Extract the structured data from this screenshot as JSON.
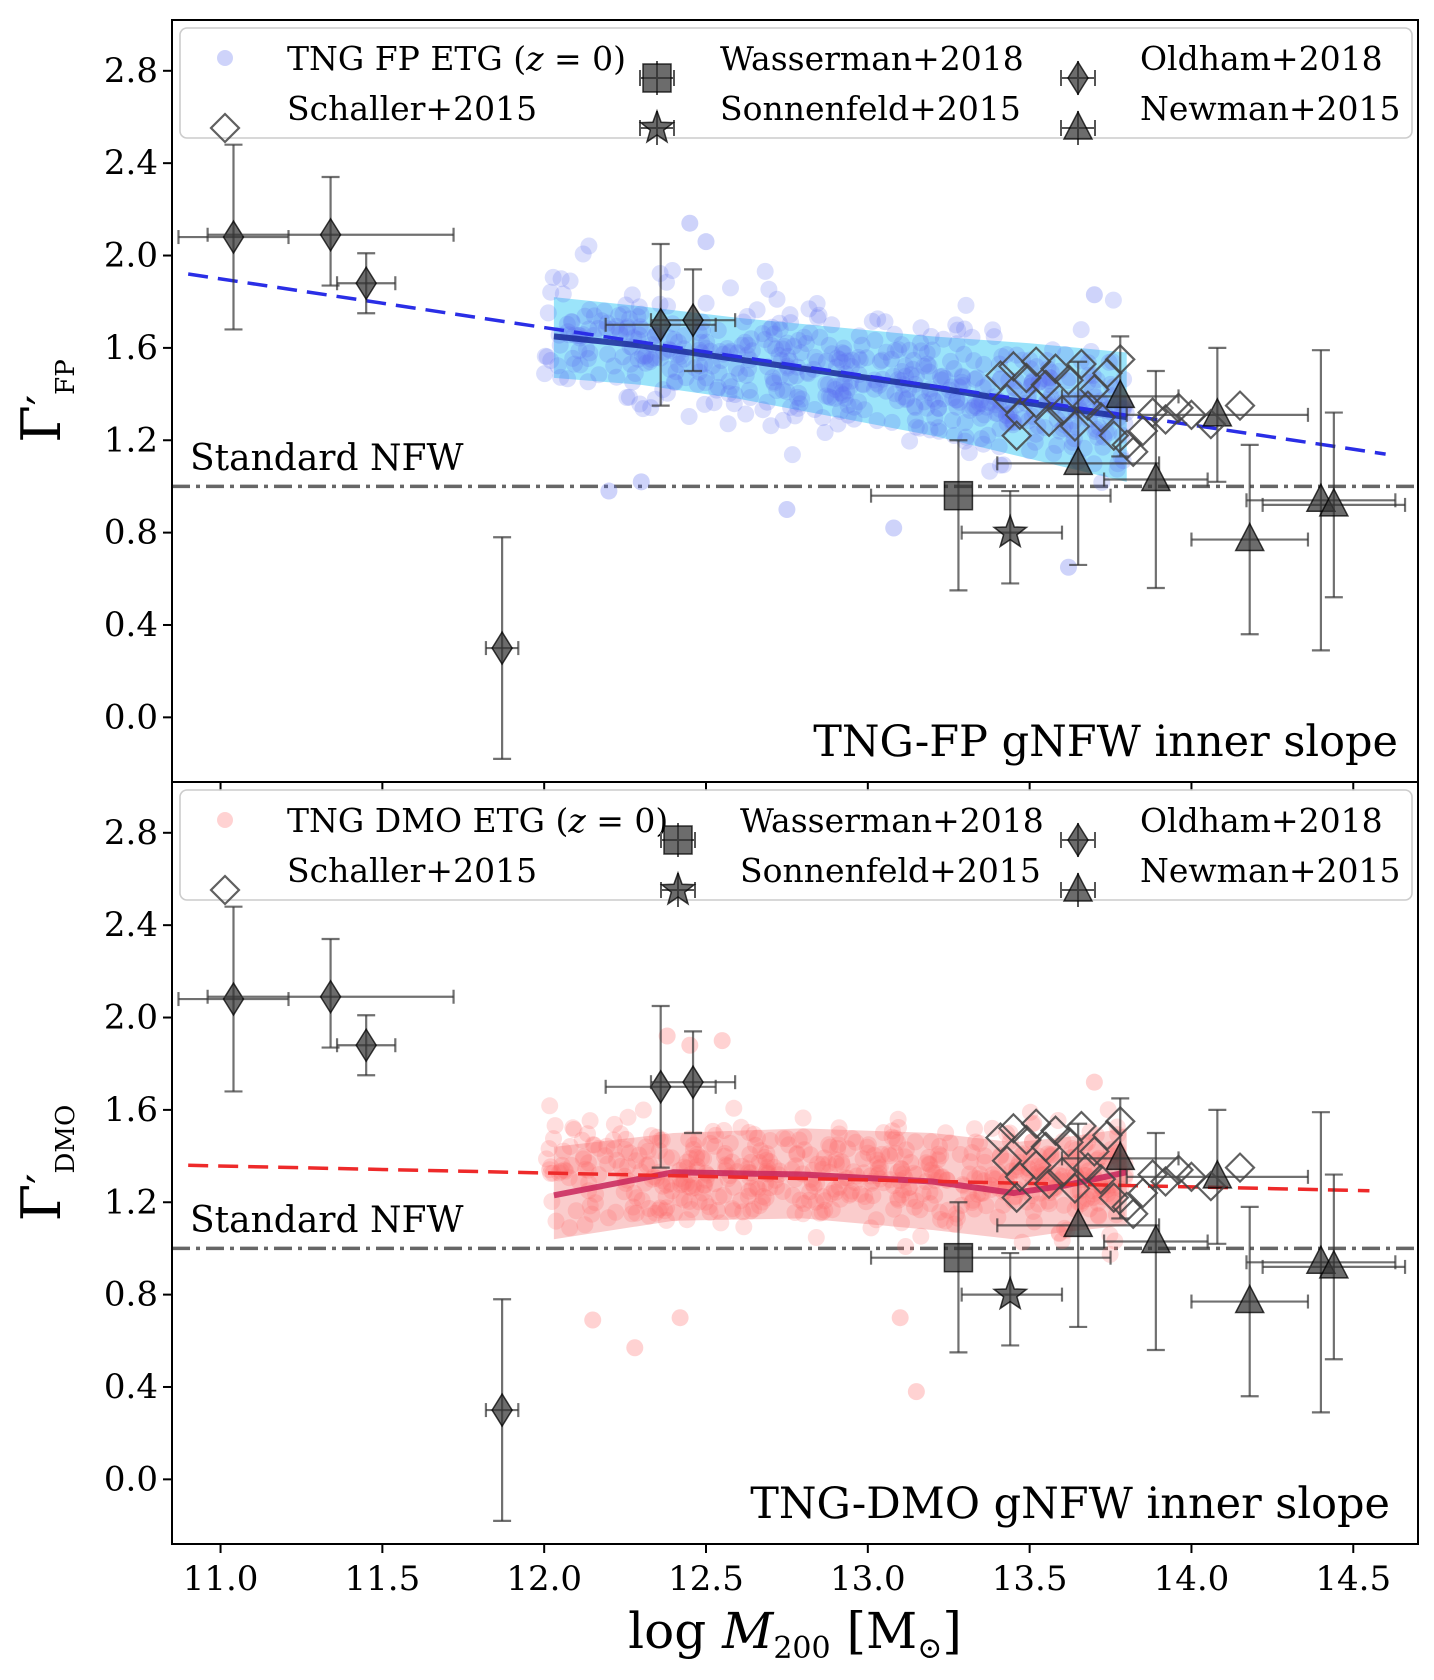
{
  "figure": {
    "shared_xlabel": "log M200 [M⊙]",
    "x_ticks": [
      "11.0",
      "11.5",
      "12.0",
      "12.5",
      "13.0",
      "13.5",
      "14.0",
      "14.5"
    ],
    "y_ticks": [
      "2.8",
      "2.4",
      "2.0",
      "1.6",
      "1.2",
      "0.8",
      "0.4",
      "0.0"
    ],
    "ref_label": "Standard NFW"
  },
  "chart_data": [
    {
      "type": "scatter",
      "id": "fp",
      "title": "TNG-FP gNFW inner slope",
      "ylabel": "Γ'FP",
      "ylabel_sub": "FP",
      "xlim": [
        10.85,
        14.7
      ],
      "ylim": [
        -0.28,
        3.02
      ],
      "colors": {
        "points": "#5c6cf0",
        "band": "#49cdf6",
        "median": "#1a2a9a",
        "fit": "#2a2ee6"
      },
      "legend": {
        "sim_label": "TNG FP ETG (z=0)",
        "sim_prefix": "TNG FP ETG (",
        "sim_z": "z",
        "sim_suffix": " = 0)",
        "items": [
          "Wasserman+2018",
          "Oldham+2018",
          "Schaller+2015",
          "Sonnenfeld+2015",
          "Newman+2015"
        ]
      },
      "reference_line": {
        "y": 1.0,
        "label": "Standard NFW"
      },
      "fit_line": {
        "x": [
          10.9,
          14.6
        ],
        "y": [
          1.92,
          1.14
        ]
      },
      "median_line": {
        "x": [
          12.03,
          12.3,
          12.6,
          12.9,
          13.2,
          13.5,
          13.8
        ],
        "y": [
          1.65,
          1.61,
          1.55,
          1.49,
          1.43,
          1.36,
          1.3
        ]
      },
      "band": {
        "x": [
          12.03,
          12.3,
          12.6,
          12.9,
          13.2,
          13.5,
          13.8
        ],
        "upper": [
          1.82,
          1.78,
          1.73,
          1.69,
          1.65,
          1.62,
          1.58
        ],
        "lower": [
          1.47,
          1.44,
          1.38,
          1.3,
          1.22,
          1.12,
          1.02
        ]
      },
      "sim_points": {
        "count": 560,
        "x_range": [
          12.0,
          13.8
        ],
        "y_trend": [
          1.67,
          1.32
        ],
        "y_scatter": 0.17,
        "outliers": [
          [
            12.45,
            2.14
          ],
          [
            12.5,
            2.06
          ],
          [
            13.7,
            1.83
          ],
          [
            13.08,
            0.82
          ],
          [
            13.62,
            0.65
          ],
          [
            12.2,
            0.98
          ],
          [
            12.3,
            1.02
          ],
          [
            12.75,
            0.9
          ]
        ]
      }
    },
    {
      "type": "scatter",
      "id": "dmo",
      "title": "TNG-DMO gNFW inner slope",
      "ylabel": "Γ'DMO",
      "ylabel_sub": "DMO",
      "xlim": [
        10.85,
        14.7
      ],
      "ylim": [
        -0.28,
        3.02
      ],
      "colors": {
        "points": "#ff6a6a",
        "band": "#f6a3a3",
        "median": "#c8245a",
        "fit": "#ee2a2a"
      },
      "legend": {
        "sim_label": "TNG DMO ETG (z=0)",
        "sim_prefix": "TNG DMO ETG (",
        "sim_z": "z",
        "sim_suffix": " = 0)",
        "items": [
          "Wasserman+2018",
          "Oldham+2018",
          "Schaller+2015",
          "Sonnenfeld+2015",
          "Newman+2015"
        ]
      },
      "reference_line": {
        "y": 1.0,
        "label": "Standard NFW"
      },
      "fit_line": {
        "x": [
          10.9,
          14.55
        ],
        "y": [
          1.36,
          1.25
        ]
      },
      "median_line": {
        "x": [
          12.03,
          12.4,
          12.8,
          13.2,
          13.45,
          13.6,
          13.8
        ],
        "y": [
          1.23,
          1.33,
          1.32,
          1.29,
          1.24,
          1.27,
          1.33
        ]
      },
      "band": {
        "x": [
          12.03,
          12.4,
          12.8,
          13.2,
          13.45,
          13.6,
          13.8
        ],
        "upper": [
          1.44,
          1.5,
          1.52,
          1.5,
          1.46,
          1.48,
          1.52
        ],
        "lower": [
          1.04,
          1.12,
          1.13,
          1.08,
          1.04,
          1.07,
          1.1
        ]
      },
      "sim_points": {
        "count": 560,
        "x_range": [
          12.0,
          13.8
        ],
        "y_trend": [
          1.33,
          1.3
        ],
        "y_scatter": 0.15,
        "outliers": [
          [
            12.38,
            1.92
          ],
          [
            12.45,
            1.88
          ],
          [
            12.55,
            1.9
          ],
          [
            13.7,
            1.72
          ],
          [
            12.28,
            0.57
          ],
          [
            12.42,
            0.7
          ],
          [
            12.15,
            0.69
          ],
          [
            13.15,
            0.38
          ],
          [
            13.1,
            0.7
          ]
        ]
      }
    }
  ],
  "observations": {
    "oldham": [
      {
        "x": 11.04,
        "y": 2.08,
        "xerr": [
          0.17,
          0.17
        ],
        "yerr": [
          0.4,
          0.4
        ]
      },
      {
        "x": 11.34,
        "y": 2.09,
        "xerr": [
          0.38,
          0.38
        ],
        "yerr": [
          0.22,
          0.25
        ]
      },
      {
        "x": 11.45,
        "y": 1.88,
        "xerr": [
          0.09,
          0.09
        ],
        "yerr": [
          0.13,
          0.13
        ]
      },
      {
        "x": 11.87,
        "y": 0.3,
        "xerr": [
          0.05,
          0.05
        ],
        "yerr": [
          0.48,
          0.48
        ]
      },
      {
        "x": 12.36,
        "y": 1.7,
        "xerr": [
          0.17,
          0.17
        ],
        "yerr": [
          0.35,
          0.35
        ]
      },
      {
        "x": 12.46,
        "y": 1.72,
        "xerr": [
          0.13,
          0.13
        ],
        "yerr": [
          0.22,
          0.22
        ]
      }
    ],
    "wasserman": [
      {
        "x": 13.28,
        "y": 0.96,
        "xerr": [
          0.27,
          0.47
        ],
        "yerr": [
          0.41,
          0.24
        ]
      }
    ],
    "sonnenfeld": [
      {
        "x": 13.44,
        "y": 0.8,
        "xerr": [
          0.15,
          0.16
        ],
        "yerr": [
          0.22,
          0.18
        ]
      }
    ],
    "newman": [
      {
        "x": 13.65,
        "y": 1.1,
        "xerr": [
          0.25,
          0.25
        ],
        "yerr": [
          0.44,
          0.44
        ]
      },
      {
        "x": 13.78,
        "y": 1.39,
        "xerr": [
          0.18,
          0.18
        ],
        "yerr": [
          0.26,
          0.26
        ]
      },
      {
        "x": 13.89,
        "y": 1.03,
        "xerr": [
          0.16,
          0.16
        ],
        "yerr": [
          0.47,
          0.47
        ]
      },
      {
        "x": 14.08,
        "y": 1.31,
        "xerr": [
          0.28,
          0.28
        ],
        "yerr": [
          0.29,
          0.29
        ]
      },
      {
        "x": 14.18,
        "y": 0.77,
        "xerr": [
          0.18,
          0.18
        ],
        "yerr": [
          0.41,
          0.41
        ]
      },
      {
        "x": 14.4,
        "y": 0.94,
        "xerr": [
          0.23,
          0.23
        ],
        "yerr": [
          0.65,
          0.65
        ]
      },
      {
        "x": 14.44,
        "y": 0.92,
        "xerr": [
          0.22,
          0.22
        ],
        "yerr": [
          0.4,
          0.4
        ]
      }
    ],
    "schaller": [
      {
        "x": 13.41,
        "y": 1.48
      },
      {
        "x": 13.45,
        "y": 1.52
      },
      {
        "x": 13.49,
        "y": 1.47
      },
      {
        "x": 13.52,
        "y": 1.54
      },
      {
        "x": 13.55,
        "y": 1.44
      },
      {
        "x": 13.58,
        "y": 1.51
      },
      {
        "x": 13.62,
        "y": 1.46
      },
      {
        "x": 13.66,
        "y": 1.53
      },
      {
        "x": 13.7,
        "y": 1.42
      },
      {
        "x": 13.74,
        "y": 1.49
      },
      {
        "x": 13.78,
        "y": 1.55
      },
      {
        "x": 13.43,
        "y": 1.38
      },
      {
        "x": 13.47,
        "y": 1.31
      },
      {
        "x": 13.52,
        "y": 1.36
      },
      {
        "x": 13.56,
        "y": 1.28
      },
      {
        "x": 13.6,
        "y": 1.33
      },
      {
        "x": 13.64,
        "y": 1.26
      },
      {
        "x": 13.68,
        "y": 1.35
      },
      {
        "x": 13.72,
        "y": 1.3
      },
      {
        "x": 13.76,
        "y": 1.22
      },
      {
        "x": 13.8,
        "y": 1.18
      },
      {
        "x": 13.88,
        "y": 1.32
      },
      {
        "x": 13.92,
        "y": 1.29
      },
      {
        "x": 13.96,
        "y": 1.34
      },
      {
        "x": 14.0,
        "y": 1.31
      },
      {
        "x": 14.06,
        "y": 1.27
      },
      {
        "x": 14.15,
        "y": 1.35
      },
      {
        "x": 13.46,
        "y": 1.22
      },
      {
        "x": 13.85,
        "y": 1.24
      },
      {
        "x": 13.82,
        "y": 1.15
      }
    ]
  }
}
